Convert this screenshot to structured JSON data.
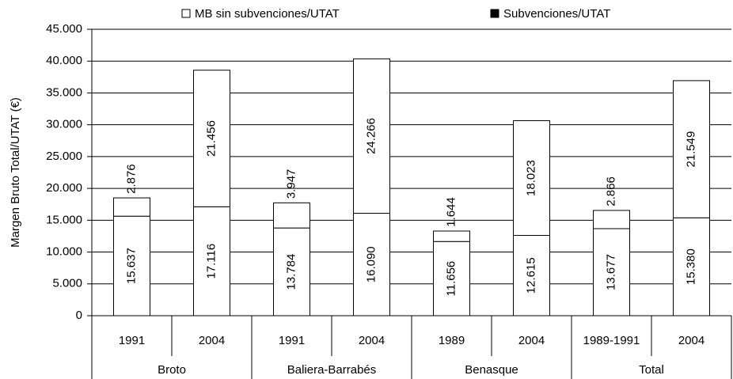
{
  "chart_data": {
    "type": "stacked_bar",
    "y_axis_label": "Margen Bruto Total/UTAT (€)",
    "categories": [
      "1991",
      "2004",
      "1991",
      "2004",
      "1989",
      "2004",
      "1989-1991",
      "2004"
    ],
    "groups": [
      "Broto",
      "Baliera-Barrabés",
      "Benasque",
      "Total"
    ],
    "series": [
      {
        "name": "MB sin subvenciones/UTAT",
        "color": "#ffffff",
        "marker_color": "#ffffff",
        "values": [
          15637,
          17116,
          13784,
          16090,
          11656,
          12615,
          13677,
          15380
        ],
        "value_labels": [
          "15.637",
          "17.116",
          "13.784",
          "16.090",
          "11.656",
          "12.615",
          "13.677",
          "15.380"
        ]
      },
      {
        "name": "Subvenciones/UTAT",
        "color": "#ffffff",
        "marker_color": "#000000",
        "values": [
          2876,
          21456,
          3947,
          24266,
          1644,
          18023,
          2866,
          21549
        ],
        "value_labels": [
          "2.876",
          "21.456",
          "3.947",
          "24.266",
          "1.644",
          "18.023",
          "2.866",
          "21.549"
        ]
      }
    ],
    "ylim": [
      0,
      45000
    ],
    "yticks": [
      0,
      {
        "value": 5000,
        "label": "5.000"
      },
      {
        "value": 10000,
        "label": "10.000"
      },
      {
        "value": 15000,
        "label": "15.000"
      },
      {
        "value": 20000,
        "label": "20.000"
      },
      {
        "value": 25000,
        "label": "25.000"
      },
      {
        "value": 30000,
        "label": "30.000"
      },
      {
        "value": 35000,
        "label": "35.000"
      },
      {
        "value": 40000,
        "label": "40.000"
      },
      {
        "value": 45000,
        "label": "45.000"
      }
    ],
    "grid": true
  }
}
